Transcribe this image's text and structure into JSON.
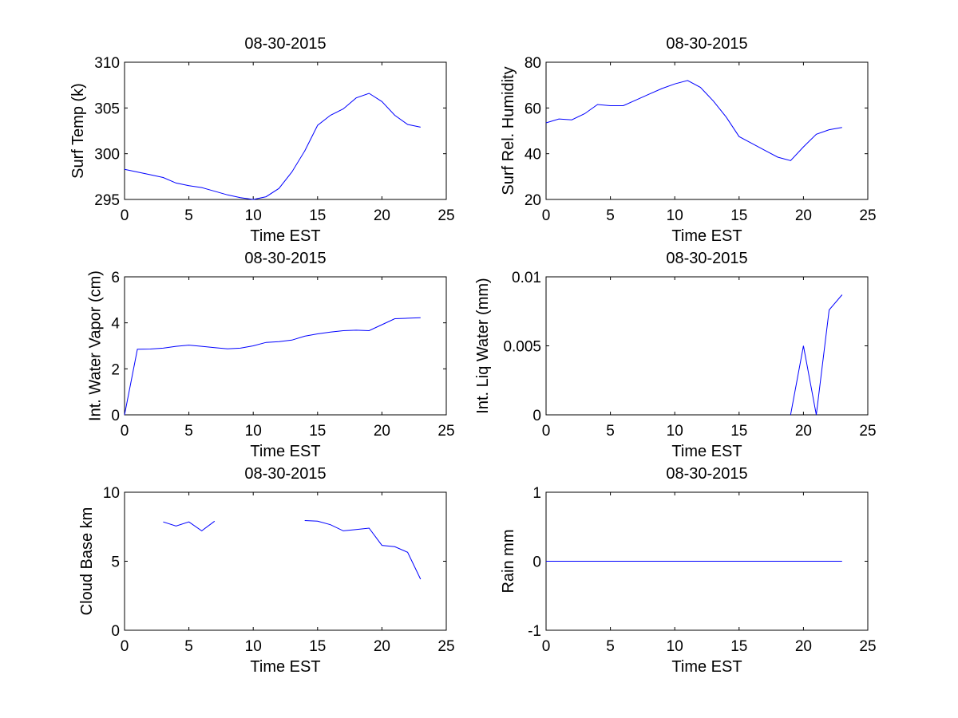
{
  "chart_data": [
    {
      "type": "line",
      "title": "08-30-2015",
      "xlabel": "Time EST",
      "ylabel": "Surf Temp (k)",
      "xlim": [
        0,
        25
      ],
      "ylim": [
        295,
        310
      ],
      "xticks": [
        "0",
        "5",
        "10",
        "15",
        "20",
        "25"
      ],
      "yticks": [
        "295",
        "300",
        "305",
        "310"
      ],
      "xtick_values": [
        0,
        5,
        10,
        15,
        20,
        25
      ],
      "ytick_values": [
        295,
        300,
        305,
        310
      ],
      "grid": false,
      "series_color": "#0000ff",
      "x": [
        0,
        1,
        2,
        3,
        4,
        5,
        6,
        7,
        8,
        9,
        10,
        11,
        12,
        13,
        14,
        15,
        16,
        17,
        18,
        19,
        20,
        21,
        22,
        23
      ],
      "y": [
        298.3,
        298.0,
        297.7,
        297.4,
        296.8,
        296.5,
        296.3,
        295.9,
        295.5,
        295.2,
        295.0,
        295.3,
        296.2,
        298.0,
        300.3,
        303.1,
        304.2,
        304.9,
        306.1,
        306.6,
        305.7,
        304.2,
        303.2,
        302.9
      ]
    },
    {
      "type": "line",
      "title": "08-30-2015",
      "xlabel": "Time EST",
      "ylabel": "Surf Rel. Humidity",
      "xlim": [
        0,
        25
      ],
      "ylim": [
        20,
        80
      ],
      "xticks": [
        "0",
        "5",
        "10",
        "15",
        "20",
        "25"
      ],
      "yticks": [
        "20",
        "40",
        "60",
        "80"
      ],
      "xtick_values": [
        0,
        5,
        10,
        15,
        20,
        25
      ],
      "ytick_values": [
        20,
        40,
        60,
        80
      ],
      "grid": false,
      "series_color": "#0000ff",
      "x": [
        0,
        1,
        2,
        3,
        4,
        5,
        6,
        7,
        8,
        9,
        10,
        11,
        12,
        13,
        14,
        15,
        16,
        17,
        18,
        19,
        20,
        21,
        22,
        23
      ],
      "y": [
        53.5,
        55.2,
        54.8,
        57.5,
        61.5,
        61.0,
        61.0,
        63.5,
        66.0,
        68.5,
        70.5,
        72.0,
        69.0,
        63.0,
        56.0,
        47.5,
        44.5,
        41.5,
        38.5,
        37.0,
        43.0,
        48.5,
        50.5,
        51.5
      ]
    },
    {
      "type": "line",
      "title": "08-30-2015",
      "xlabel": "Time EST",
      "ylabel": "Int. Water Vapor (cm)",
      "xlim": [
        0,
        25
      ],
      "ylim": [
        0,
        6
      ],
      "xticks": [
        "0",
        "5",
        "10",
        "15",
        "20",
        "25"
      ],
      "yticks": [
        "0",
        "2",
        "4",
        "6"
      ],
      "xtick_values": [
        0,
        5,
        10,
        15,
        20,
        25
      ],
      "ytick_values": [
        0,
        2,
        4,
        6
      ],
      "grid": false,
      "series_color": "#0000ff",
      "x": [
        0,
        1,
        2,
        3,
        4,
        5,
        6,
        7,
        8,
        9,
        10,
        11,
        12,
        13,
        14,
        15,
        16,
        17,
        18,
        19,
        20,
        21,
        22,
        23
      ],
      "y": [
        0.0,
        2.85,
        2.86,
        2.9,
        2.98,
        3.03,
        2.98,
        2.92,
        2.87,
        2.9,
        3.0,
        3.15,
        3.18,
        3.25,
        3.42,
        3.52,
        3.6,
        3.66,
        3.68,
        3.66,
        3.92,
        4.18,
        4.2,
        4.22
      ]
    },
    {
      "type": "line",
      "title": "08-30-2015",
      "xlabel": "Time EST",
      "ylabel": "Int. Liq Water (mm)",
      "xlim": [
        0,
        25
      ],
      "ylim": [
        0,
        0.01
      ],
      "xticks": [
        "0",
        "5",
        "10",
        "15",
        "20",
        "25"
      ],
      "yticks": [
        "0",
        "0.005",
        "0.01"
      ],
      "xtick_values": [
        0,
        5,
        10,
        15,
        20,
        25
      ],
      "ytick_values": [
        0,
        0.005,
        0.01
      ],
      "grid": false,
      "series_color": "#0000ff",
      "x": [
        19,
        20,
        21,
        22,
        23
      ],
      "y": [
        0.0,
        0.005,
        0.0,
        0.0076,
        0.0087
      ]
    },
    {
      "type": "line",
      "title": "08-30-2015",
      "xlabel": "Time EST",
      "ylabel": "Cloud Base km",
      "xlim": [
        0,
        25
      ],
      "ylim": [
        0,
        10
      ],
      "xticks": [
        "0",
        "5",
        "10",
        "15",
        "20",
        "25"
      ],
      "yticks": [
        "0",
        "5",
        "10"
      ],
      "xtick_values": [
        0,
        5,
        10,
        15,
        20,
        25
      ],
      "ytick_values": [
        0,
        5,
        10
      ],
      "grid": false,
      "series_color": "#0000ff",
      "segments": [
        {
          "x": [
            3,
            4,
            5,
            6,
            7
          ],
          "y": [
            7.85,
            7.55,
            7.85,
            7.2,
            7.9
          ]
        },
        {
          "x": [
            14,
            15,
            16,
            17,
            18,
            19,
            20,
            21,
            22,
            23
          ],
          "y": [
            7.95,
            7.9,
            7.65,
            7.2,
            7.3,
            7.4,
            6.15,
            6.05,
            5.65,
            3.7
          ]
        }
      ]
    },
    {
      "type": "line",
      "title": "08-30-2015",
      "xlabel": "Time EST",
      "ylabel": "Rain mm",
      "xlim": [
        0,
        25
      ],
      "ylim": [
        -1,
        1
      ],
      "xticks": [
        "0",
        "5",
        "10",
        "15",
        "20",
        "25"
      ],
      "yticks": [
        "-1",
        "0",
        "1"
      ],
      "xtick_values": [
        0,
        5,
        10,
        15,
        20,
        25
      ],
      "ytick_values": [
        -1,
        0,
        1
      ],
      "grid": false,
      "series_color": "#0000ff",
      "x": [
        0,
        1,
        2,
        3,
        4,
        5,
        6,
        7,
        8,
        9,
        10,
        11,
        12,
        13,
        14,
        15,
        16,
        17,
        18,
        19,
        20,
        21,
        22,
        23
      ],
      "y": [
        0,
        0,
        0,
        0,
        0,
        0,
        0,
        0,
        0,
        0,
        0,
        0,
        0,
        0,
        0,
        0,
        0,
        0,
        0,
        0,
        0,
        0,
        0,
        0
      ]
    }
  ]
}
